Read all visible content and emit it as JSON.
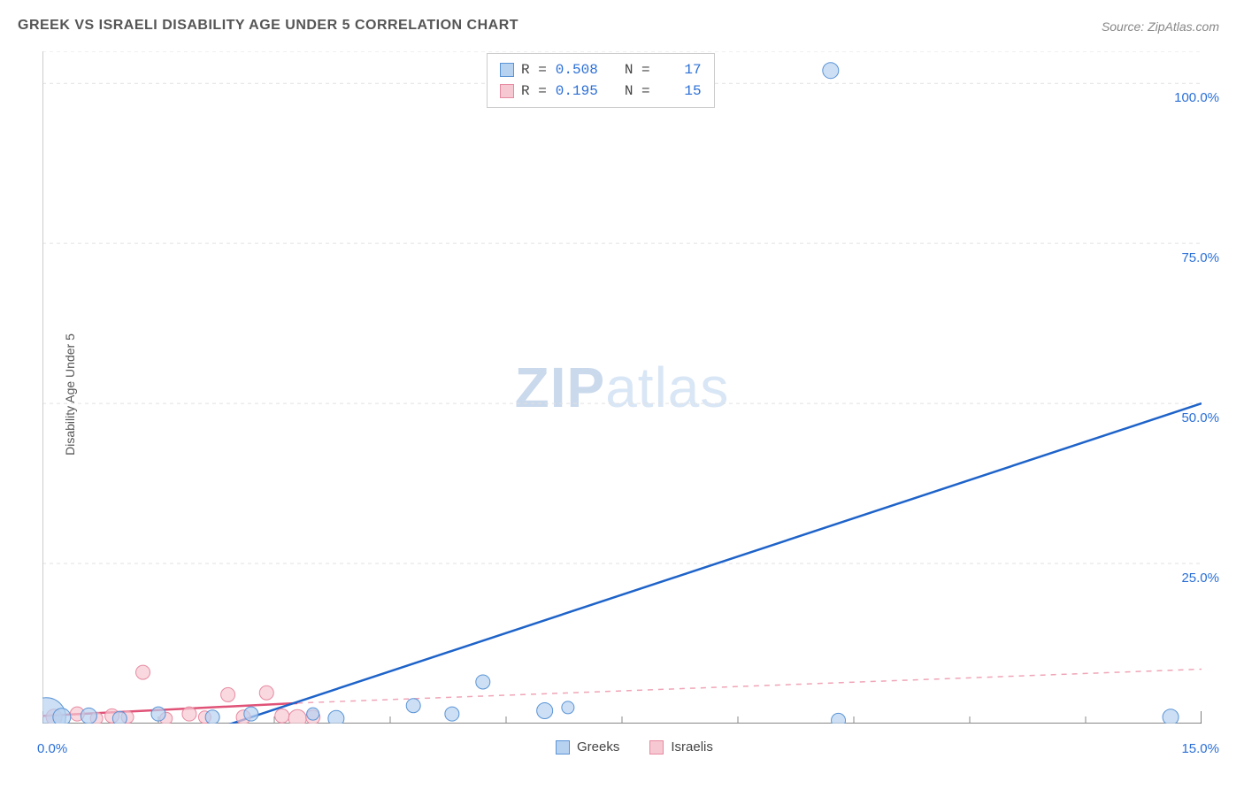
{
  "title": "GREEK VS ISRAELI DISABILITY AGE UNDER 5 CORRELATION CHART",
  "source": "Source: ZipAtlas.com",
  "y_axis_label": "Disability Age Under 5",
  "watermark_zip": "ZIP",
  "watermark_atlas": "atlas",
  "chart": {
    "type": "scatter",
    "xlim": [
      0,
      15
    ],
    "ylim": [
      0,
      105
    ],
    "xtick_labels": [
      "0.0%",
      "15.0%"
    ],
    "ytick_labels": [
      "25.0%",
      "50.0%",
      "75.0%",
      "100.0%"
    ],
    "ytick_values": [
      25,
      50,
      75,
      100
    ],
    "xtick_major": [
      0,
      15
    ],
    "xtick_minor": [
      1.5,
      3.0,
      4.5,
      6.0,
      7.5,
      9.0,
      10.5,
      12.0,
      13.5
    ],
    "grid_color": "#e2e2e2",
    "grid_dash": "4 4",
    "axis_line_color": "#cccccc",
    "background_color": "#ffffff",
    "series": {
      "greeks": {
        "label": "Greeks",
        "fill": "#b7d1f0",
        "stroke": "#5a94d6",
        "opacity": 0.7,
        "R": "0.508",
        "N": "17",
        "trend": {
          "x1": 2.2,
          "y1": -1,
          "x2": 15,
          "y2": 50,
          "stroke": "#1e63c9",
          "width": 2.5,
          "dash": "none"
        },
        "points": [
          {
            "x": 0.05,
            "y": 1.0,
            "r": 22
          },
          {
            "x": 0.25,
            "y": 1.0,
            "r": 10
          },
          {
            "x": 0.6,
            "y": 1.2,
            "r": 9
          },
          {
            "x": 1.0,
            "y": 0.8,
            "r": 8
          },
          {
            "x": 1.5,
            "y": 1.5,
            "r": 8
          },
          {
            "x": 2.2,
            "y": 1.0,
            "r": 8
          },
          {
            "x": 2.7,
            "y": 1.5,
            "r": 8
          },
          {
            "x": 3.5,
            "y": 1.5,
            "r": 7
          },
          {
            "x": 3.8,
            "y": 0.8,
            "r": 9
          },
          {
            "x": 4.8,
            "y": 2.8,
            "r": 8
          },
          {
            "x": 5.3,
            "y": 1.5,
            "r": 8
          },
          {
            "x": 5.7,
            "y": 6.5,
            "r": 8
          },
          {
            "x": 6.5,
            "y": 2.0,
            "r": 9
          },
          {
            "x": 6.8,
            "y": 2.5,
            "r": 7
          },
          {
            "x": 10.3,
            "y": 0.5,
            "r": 8
          },
          {
            "x": 10.2,
            "y": 102.0,
            "r": 9
          },
          {
            "x": 14.6,
            "y": 1.0,
            "r": 9
          }
        ]
      },
      "israelis": {
        "label": "Israelis",
        "fill": "#f6c8d2",
        "stroke": "#e78aa1",
        "opacity": 0.7,
        "R": "0.195",
        "N": "15",
        "trend_solid": {
          "x1": 0,
          "y1": 1.2,
          "x2": 3.3,
          "y2": 3.2,
          "stroke": "#e05277",
          "width": 2.5
        },
        "trend_dash": {
          "x1": 3.3,
          "y1": 3.2,
          "x2": 15,
          "y2": 8.5,
          "stroke": "#f0a5b7",
          "width": 1.5,
          "dash": "6 6"
        },
        "points": [
          {
            "x": 0.15,
            "y": 1.0,
            "r": 9
          },
          {
            "x": 0.45,
            "y": 1.5,
            "r": 8
          },
          {
            "x": 0.7,
            "y": 0.8,
            "r": 7
          },
          {
            "x": 0.9,
            "y": 1.2,
            "r": 8
          },
          {
            "x": 1.1,
            "y": 1.0,
            "r": 7
          },
          {
            "x": 1.3,
            "y": 8.0,
            "r": 8
          },
          {
            "x": 1.6,
            "y": 0.8,
            "r": 7
          },
          {
            "x": 1.9,
            "y": 1.5,
            "r": 8
          },
          {
            "x": 2.1,
            "y": 1.0,
            "r": 7
          },
          {
            "x": 2.4,
            "y": 4.5,
            "r": 8
          },
          {
            "x": 2.6,
            "y": 1.0,
            "r": 8
          },
          {
            "x": 2.9,
            "y": 4.8,
            "r": 8
          },
          {
            "x": 3.1,
            "y": 1.2,
            "r": 8
          },
          {
            "x": 3.3,
            "y": 0.8,
            "r": 10
          },
          {
            "x": 3.5,
            "y": 1.0,
            "r": 8
          }
        ]
      }
    }
  },
  "legend_top": {
    "R_label": "R =",
    "N_label": "N ="
  },
  "legend_bottom": {
    "greeks": "Greeks",
    "israelis": "Israelis"
  }
}
